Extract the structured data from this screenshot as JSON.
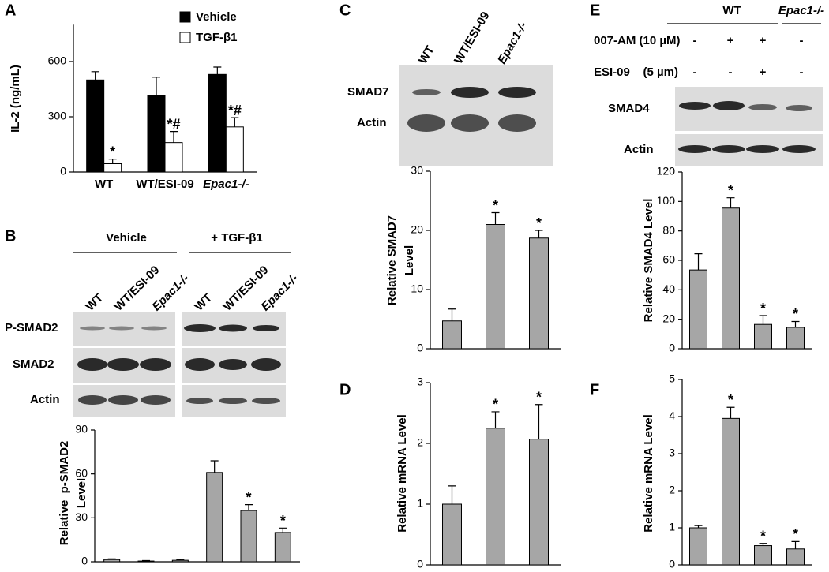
{
  "chart_data": [
    {
      "type": "bar",
      "panel": "A",
      "ylabel": "IL-2 (ng/mL)",
      "categories": [
        "WT",
        "WT/ESI-09",
        "Epac1-/-"
      ],
      "series": [
        {
          "name": "Vehicle",
          "color": "#000000",
          "values": [
            500,
            415,
            530
          ],
          "errors": [
            45,
            100,
            40
          ],
          "labels": [
            null,
            null,
            null
          ]
        },
        {
          "name": "TGF-β1",
          "color": "#ffffff",
          "values": [
            45,
            160,
            245
          ],
          "errors": [
            25,
            60,
            50
          ],
          "labels": [
            "*",
            "*#",
            "*#"
          ]
        }
      ],
      "ylim": [
        0,
        800
      ],
      "yticks": [
        0,
        300,
        600
      ]
    },
    {
      "type": "bar",
      "panel": "B",
      "ylabel": [
        "Relative  p-SMAD2",
        "Level"
      ],
      "categories": [
        null,
        null,
        null,
        null,
        null,
        null
      ],
      "color": "#a6a6a6",
      "values": [
        1.5,
        0.5,
        1,
        61,
        35,
        20
      ],
      "errors": [
        0.5,
        0.3,
        0.5,
        8,
        4,
        3
      ],
      "labels": [
        null,
        null,
        null,
        null,
        "*",
        "*"
      ],
      "ylim": [
        0,
        90
      ],
      "yticks": [
        0,
        30,
        60,
        90
      ]
    },
    {
      "type": "bar",
      "panel": "C",
      "ylabel": [
        "Relative SMAD7",
        "Level"
      ],
      "categories": [
        null,
        null,
        null
      ],
      "color": "#a6a6a6",
      "values": [
        4.7,
        21,
        18.7
      ],
      "errors": [
        2,
        2,
        1.3
      ],
      "labels": [
        null,
        "*",
        "*"
      ],
      "ylim": [
        0,
        30
      ],
      "yticks": [
        0,
        10,
        20,
        30
      ]
    },
    {
      "type": "bar",
      "panel": "D",
      "ylabel": "Relative mRNA Level",
      "categories": [
        null,
        null,
        null
      ],
      "color": "#a6a6a6",
      "values": [
        1.0,
        2.25,
        2.07
      ],
      "errors": [
        0.3,
        0.27,
        0.57
      ],
      "labels": [
        null,
        "*",
        "*"
      ],
      "ylim": [
        0,
        3
      ],
      "yticks": [
        0,
        1,
        2,
        3
      ]
    },
    {
      "type": "bar",
      "panel": "E",
      "ylabel": "Relative SMAD4 Level",
      "categories": [
        null,
        null,
        null,
        null
      ],
      "color": "#a6a6a6",
      "values": [
        53.5,
        95.5,
        16.5,
        14.5
      ],
      "errors": [
        11,
        7,
        6,
        4
      ],
      "labels": [
        null,
        "*",
        "*",
        "*"
      ],
      "ylim": [
        0,
        120
      ],
      "yticks": [
        0,
        20,
        40,
        60,
        80,
        100,
        120
      ]
    },
    {
      "type": "bar",
      "panel": "F",
      "ylabel": "Relative mRNA Level",
      "categories": [
        null,
        null,
        null,
        null
      ],
      "color": "#a6a6a6",
      "values": [
        1.0,
        3.95,
        0.52,
        0.43
      ],
      "errors": [
        0.06,
        0.3,
        0.06,
        0.2
      ],
      "labels": [
        null,
        "*",
        "*",
        "*"
      ],
      "ylim": [
        0,
        5
      ],
      "yticks": [
        0,
        1,
        2,
        3,
        4,
        5
      ]
    }
  ],
  "blots": {
    "B": {
      "groups": [
        "Vehicle",
        "+ TGF-β1"
      ],
      "lanes": [
        "WT",
        "WT/ESI-09",
        "Epac1-/-",
        "WT",
        "WT/ESI-09",
        "Epac1-/-"
      ],
      "rows": [
        "P-SMAD2",
        "SMAD2",
        "Actin"
      ]
    },
    "C": {
      "lanes": [
        "WT",
        "WT/ESI-09",
        "Epac1-/-"
      ],
      "rows": [
        "SMAD7",
        "Actin"
      ]
    },
    "E": {
      "groups": [
        "WT",
        "Epac1-/-"
      ],
      "treatments": [
        {
          "name": "007-AM (10 µM)",
          "signs": [
            "-",
            "+",
            "+",
            "-"
          ]
        },
        {
          "name": "ESI-09    (5 µm)",
          "signs": [
            "-",
            "-",
            "+",
            "-"
          ]
        }
      ],
      "rows": [
        "SMAD4",
        "Actin"
      ]
    }
  }
}
